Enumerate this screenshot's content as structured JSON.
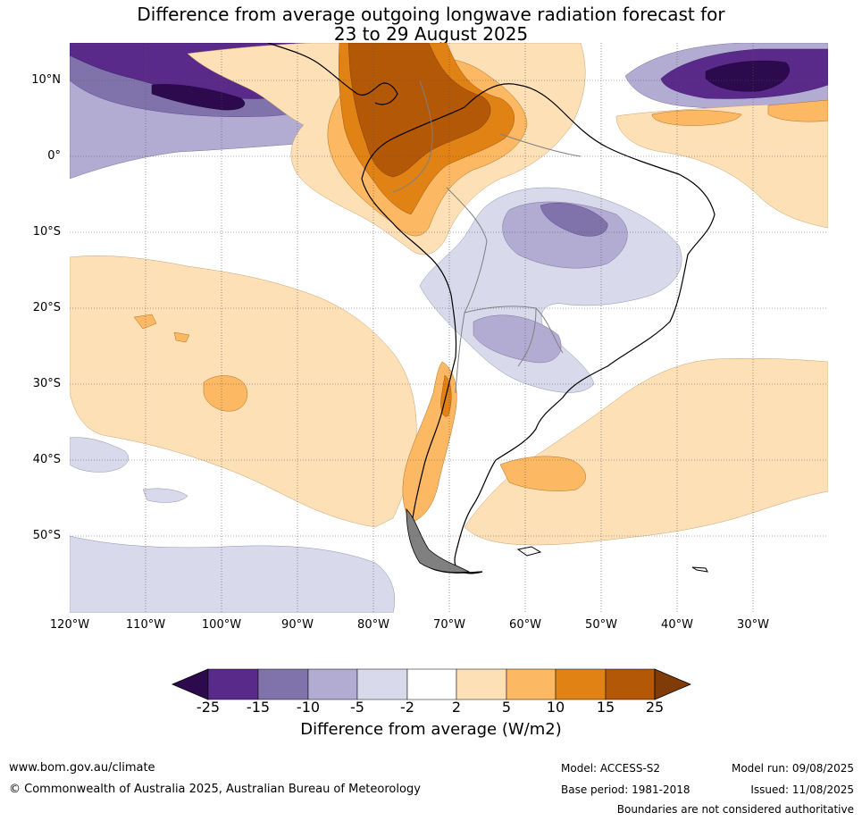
{
  "title_line1": "Difference from average outgoing longwave radiation forecast for",
  "title_line2": "23 to 29 August 2025",
  "lat_labels": [
    "10°N",
    "0°",
    "10°S",
    "20°S",
    "30°S",
    "40°S",
    "50°S"
  ],
  "lon_labels": [
    "120°W",
    "110°W",
    "100°W",
    "90°W",
    "80°W",
    "70°W",
    "60°W",
    "50°W",
    "40°W",
    "30°W"
  ],
  "colorbar": {
    "ticks": [
      "-25",
      "-15",
      "-10",
      "-5",
      "-2",
      "2",
      "5",
      "10",
      "15",
      "25"
    ],
    "label": "Difference from average (W/m2)",
    "colors": [
      "#2d0a4e",
      "#5a2a8a",
      "#8073ac",
      "#b2abd2",
      "#d8daeb",
      "#ffffff",
      "#fee0b6",
      "#fdb863",
      "#e08214",
      "#b35806",
      "#7f3b08"
    ]
  },
  "footer": {
    "website": "www.bom.gov.au/climate",
    "copyright": "© Commonwealth of Australia 2025, Australian Bureau of Meteorology",
    "model": "Model: ACCESS-S2",
    "base_period": "Base period: 1981-2018",
    "model_run": "Model run: 09/08/2025",
    "issued": "Issued: 11/08/2025",
    "disclaimer": "Boundaries are not considered authoritative"
  }
}
